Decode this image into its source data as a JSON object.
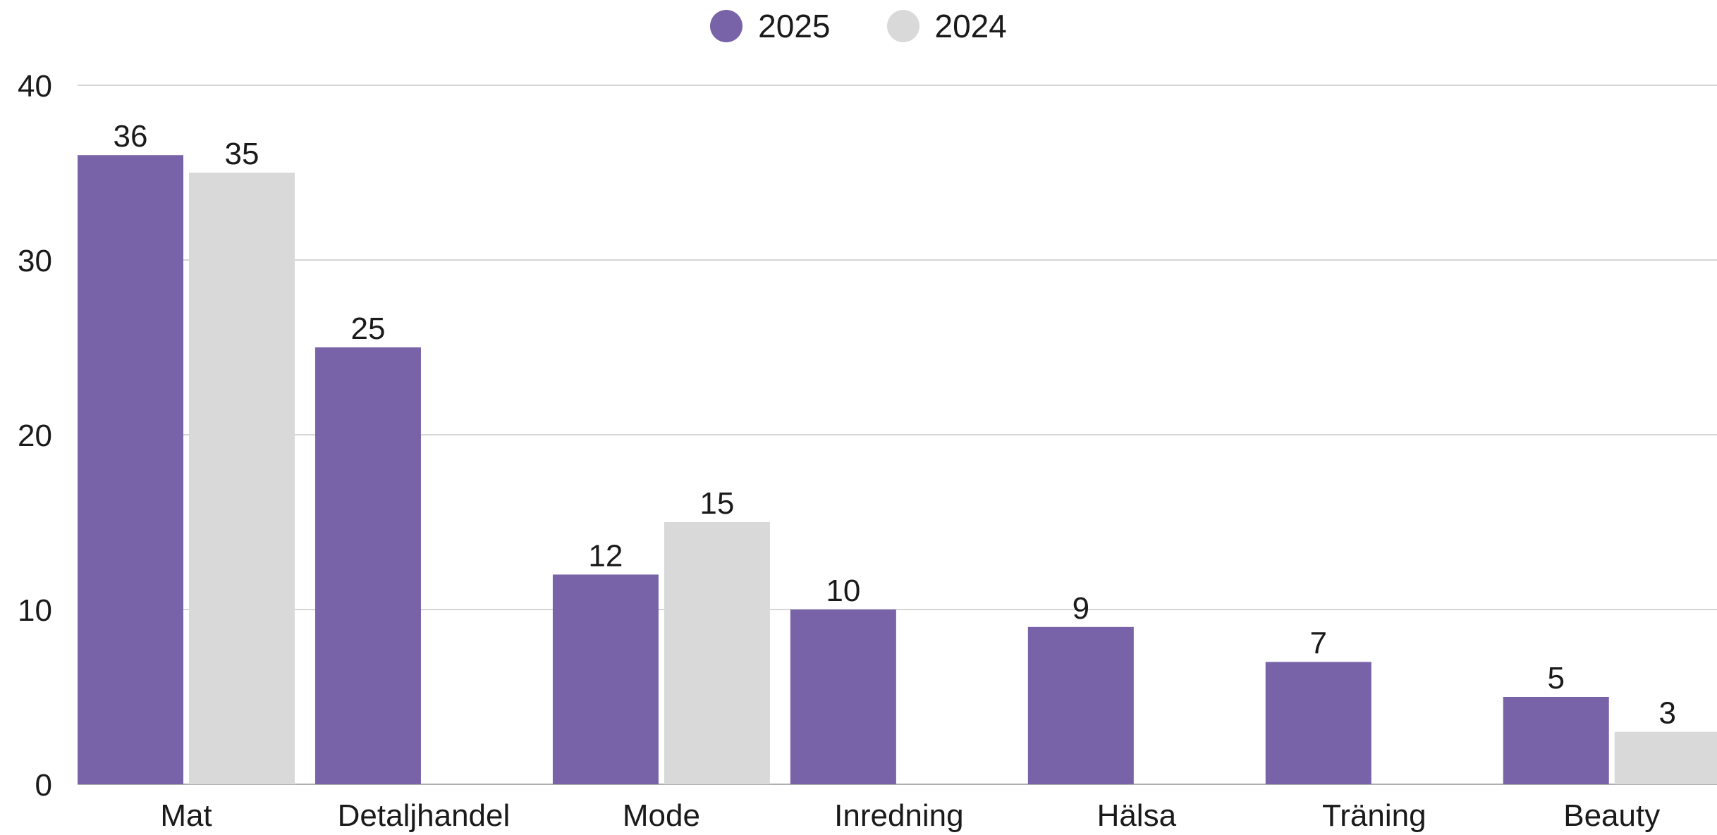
{
  "chart_data": {
    "type": "bar",
    "categories": [
      "Mat",
      "Detaljhandel",
      "Mode",
      "Inredning",
      "Hälsa",
      "Träning",
      "Beauty"
    ],
    "series": [
      {
        "name": "2025",
        "color": "#7862a8",
        "values": [
          36,
          25,
          12,
          10,
          9,
          7,
          5
        ]
      },
      {
        "name": "2024",
        "color": "#d9d9d9",
        "values": [
          35,
          null,
          15,
          null,
          null,
          null,
          3
        ]
      }
    ],
    "ylim": [
      0,
      40
    ],
    "yticks": [
      0,
      10,
      20,
      30,
      40
    ],
    "grid": true,
    "legend_position": "top-center",
    "data_labels": true
  }
}
